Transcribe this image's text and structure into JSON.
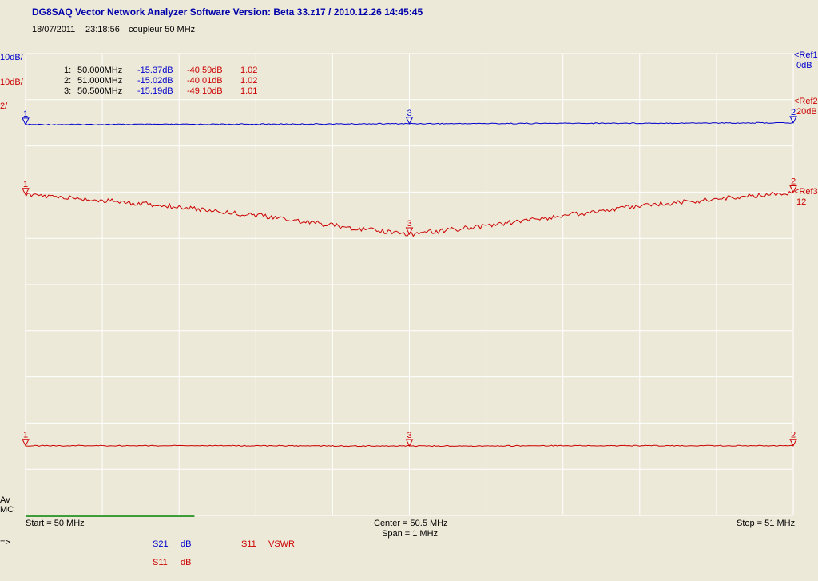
{
  "header": {
    "title": "DG8SAQ Vector Network Analyzer Software   Version:  Beta 33.z17  / 2010.12.26 14:45:45",
    "date": "18/07/2011",
    "time": "23:18:56",
    "note": "coupleur 50 MHz"
  },
  "scales": {
    "s1": "10dB/",
    "s2": "10dB/",
    "s3": "2/"
  },
  "refs": {
    "ref1_label": "<Ref1",
    "ref1_value": "0dB",
    "ref2_label": "<Ref2",
    "ref2_value": "20dB",
    "ref3_label": "<Ref3",
    "ref3_value": "12"
  },
  "marker_table": [
    {
      "idx": "1:",
      "freq": "50.000MHz",
      "s21": "-15.37dB",
      "s11": "-40.59dB",
      "vswr": "1.02"
    },
    {
      "idx": "2:",
      "freq": "51.000MHz",
      "s21": "-15.02dB",
      "s11": "-40.01dB",
      "vswr": "1.02"
    },
    {
      "idx": "3:",
      "freq": "50.500MHz",
      "s21": "-15.19dB",
      "s11": "-49.10dB",
      "vswr": "1.01"
    }
  ],
  "footer": {
    "start": "Start = 50 MHz",
    "center": "Center = 50.5 MHz",
    "span": "Span = 1 MHz",
    "stop": "Stop = 51 MHz",
    "av": "Av",
    "mc": "MC",
    "arrow": "=>"
  },
  "legend": {
    "trace1_name": "S21",
    "trace1_unit": "dB",
    "trace2_name": "S11",
    "trace2_unit": "VSWR",
    "trace3_name": "S11",
    "trace3_unit": "dB"
  },
  "colors": {
    "blue": "#0000cc",
    "red": "#cc0000",
    "grid": "#ffffff",
    "background": "#ece9d8",
    "progress": "#008000"
  },
  "progress_fraction": 0.22,
  "chart_data": {
    "type": "line",
    "x_unit": "MHz",
    "x_range": [
      50,
      51
    ],
    "grid": true,
    "series": [
      {
        "name": "S21",
        "unit": "dB",
        "color": "#0000cc",
        "x": [
          50.0,
          50.1,
          50.2,
          50.3,
          50.4,
          50.5,
          50.6,
          50.7,
          50.8,
          50.9,
          51.0
        ],
        "values": [
          -15.37,
          -15.35,
          -15.33,
          -15.3,
          -15.25,
          -15.19,
          -15.16,
          -15.12,
          -15.08,
          -15.05,
          -15.02
        ]
      },
      {
        "name": "S11",
        "unit": "dB",
        "color": "#cc0000",
        "x": [
          50.0,
          50.1,
          50.2,
          50.3,
          50.4,
          50.5,
          50.6,
          50.7,
          50.8,
          50.9,
          51.0
        ],
        "values": [
          -40.59,
          -41.8,
          -43.2,
          -45.0,
          -47.2,
          -49.1,
          -47.3,
          -45.1,
          -43.0,
          -41.5,
          -40.01
        ]
      },
      {
        "name": "S11",
        "unit": "VSWR",
        "color": "#cc0000",
        "x": [
          50.0,
          50.1,
          50.2,
          50.3,
          50.4,
          50.5,
          50.6,
          50.7,
          50.8,
          50.9,
          51.0
        ],
        "values": [
          1.02,
          1.02,
          1.02,
          1.02,
          1.01,
          1.01,
          1.01,
          1.02,
          1.02,
          1.02,
          1.02
        ]
      }
    ],
    "markers": [
      {
        "label": "1",
        "x": 50.0
      },
      {
        "label": "3",
        "x": 50.5
      },
      {
        "label": "2",
        "x": 51.0
      }
    ]
  }
}
